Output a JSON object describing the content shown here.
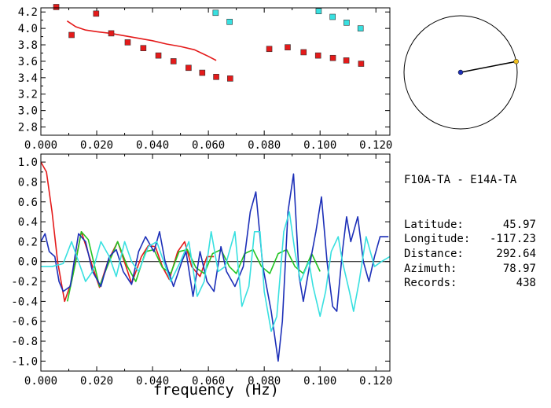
{
  "station_pair": "F10A-TA - E14A-TA",
  "info": [
    {
      "label": "Latitude:",
      "value": "45.97"
    },
    {
      "label": "Longitude:",
      "value": "-117.23"
    },
    {
      "label": "Distance:",
      "value": "292.64"
    },
    {
      "label": "Azimuth:",
      "value": "78.97"
    },
    {
      "label": "Records:",
      "value": "438"
    }
  ],
  "colors": {
    "red": "#e41a1a",
    "blue": "#1c2fb8",
    "cyan": "#38e0e0",
    "green": "#22c422",
    "axis": "#000000"
  },
  "chart_data": [
    {
      "type": "scatter",
      "title": "",
      "xlabel": "",
      "ylabel": "",
      "xlim": [
        0.0,
        0.125
      ],
      "ylim": [
        2.7,
        4.25
      ],
      "x_ticks": [
        "0.000",
        "0.020",
        "0.040",
        "0.060",
        "0.080",
        "0.100",
        "0.120"
      ],
      "y_ticks": [
        "2.8",
        "3.0",
        "3.2",
        "3.4",
        "3.6",
        "3.8",
        "4.0",
        "4.2"
      ],
      "series": [
        {
          "color": "#e41a1a",
          "points": [
            [
              0.0055,
              4.26
            ],
            [
              0.011,
              3.92
            ],
            [
              0.0198,
              4.18
            ],
            [
              0.0252,
              3.94
            ],
            [
              0.0311,
              3.83
            ],
            [
              0.0367,
              3.76
            ],
            [
              0.0421,
              3.67
            ],
            [
              0.0475,
              3.6
            ],
            [
              0.0529,
              3.52
            ],
            [
              0.0578,
              3.46
            ],
            [
              0.0628,
              3.41
            ],
            [
              0.0678,
              3.39
            ],
            [
              0.0818,
              3.75
            ],
            [
              0.0884,
              3.77
            ],
            [
              0.0941,
              3.71
            ],
            [
              0.0993,
              3.67
            ],
            [
              0.1046,
              3.64
            ],
            [
              0.1094,
              3.61
            ],
            [
              0.1147,
              3.57
            ]
          ]
        },
        {
          "color": "#38e0e0",
          "points": [
            [
              0.0626,
              4.19
            ],
            [
              0.0676,
              4.08
            ],
            [
              0.0995,
              4.21
            ],
            [
              0.1045,
              4.14
            ],
            [
              0.1095,
              4.07
            ],
            [
              0.1145,
              4.0
            ]
          ]
        }
      ],
      "fit_line": {
        "color": "#e41a1a",
        "points": [
          [
            0.0094,
            4.09
          ],
          [
            0.0125,
            4.02
          ],
          [
            0.016,
            3.98
          ],
          [
            0.02,
            3.96
          ],
          [
            0.025,
            3.94
          ],
          [
            0.03,
            3.91
          ],
          [
            0.035,
            3.88
          ],
          [
            0.04,
            3.85
          ],
          [
            0.045,
            3.81
          ],
          [
            0.05,
            3.78
          ],
          [
            0.055,
            3.74
          ],
          [
            0.06,
            3.66
          ],
          [
            0.0628,
            3.61
          ]
        ]
      }
    },
    {
      "type": "line",
      "title": "",
      "xlabel": "frequency (Hz)",
      "ylabel": "",
      "xlim": [
        0.0,
        0.125
      ],
      "ylim": [
        -1.1,
        1.08
      ],
      "x_ticks": [
        "0.000",
        "0.020",
        "0.040",
        "0.060",
        "0.080",
        "0.100",
        "0.120"
      ],
      "y_ticks": [
        "1.0",
        "0.8",
        "0.6",
        "0.4",
        "0.2",
        "0.0",
        "-0.2",
        "-0.4",
        "-0.6",
        "-0.8",
        "-1.0"
      ],
      "series": [
        {
          "color": "#e41a1a",
          "points": [
            [
              0.0,
              1.0
            ],
            [
              0.002,
              0.9
            ],
            [
              0.004,
              0.5
            ],
            [
              0.006,
              0.0
            ],
            [
              0.0085,
              -0.4
            ],
            [
              0.011,
              -0.2
            ],
            [
              0.0145,
              0.3
            ],
            [
              0.0185,
              -0.05
            ],
            [
              0.021,
              -0.26
            ],
            [
              0.024,
              0.0
            ],
            [
              0.0275,
              0.2
            ],
            [
              0.0305,
              -0.05
            ],
            [
              0.0325,
              -0.22
            ],
            [
              0.036,
              0.05
            ],
            [
              0.0385,
              0.16
            ],
            [
              0.041,
              0.15
            ],
            [
              0.0435,
              -0.05
            ],
            [
              0.046,
              -0.18
            ],
            [
              0.049,
              0.1
            ],
            [
              0.0515,
              0.2
            ],
            [
              0.054,
              -0.05
            ],
            [
              0.057,
              -0.15
            ],
            [
              0.0595,
              0.05
            ],
            [
              0.062,
              0.05
            ]
          ]
        },
        {
          "color": "#22c422",
          "points": [
            [
              0.0095,
              -0.4
            ],
            [
              0.0125,
              0.0
            ],
            [
              0.0145,
              0.3
            ],
            [
              0.017,
              0.22
            ],
            [
              0.021,
              -0.25
            ],
            [
              0.0245,
              0.0
            ],
            [
              0.0275,
              0.2
            ],
            [
              0.031,
              -0.05
            ],
            [
              0.034,
              -0.2
            ],
            [
              0.0375,
              0.1
            ],
            [
              0.0405,
              0.12
            ],
            [
              0.0435,
              -0.06
            ],
            [
              0.0465,
              -0.12
            ],
            [
              0.0495,
              0.1
            ],
            [
              0.0525,
              0.12
            ],
            [
              0.0555,
              -0.06
            ],
            [
              0.0585,
              -0.12
            ],
            [
              0.0615,
              0.08
            ],
            [
              0.0645,
              0.12
            ],
            [
              0.0675,
              -0.05
            ],
            [
              0.07,
              -0.12
            ],
            [
              0.073,
              0.08
            ],
            [
              0.076,
              0.12
            ],
            [
              0.079,
              -0.05
            ],
            [
              0.082,
              -0.12
            ],
            [
              0.085,
              0.08
            ],
            [
              0.088,
              0.12
            ],
            [
              0.091,
              -0.05
            ],
            [
              0.094,
              -0.12
            ],
            [
              0.097,
              0.08
            ],
            [
              0.1,
              -0.1
            ]
          ]
        },
        {
          "color": "#1c2fb8",
          "points": [
            [
              0.0,
              0.2
            ],
            [
              0.0015,
              0.28
            ],
            [
              0.003,
              0.1
            ],
            [
              0.005,
              0.05
            ],
            [
              0.0065,
              -0.2
            ],
            [
              0.008,
              -0.3
            ],
            [
              0.0105,
              -0.25
            ],
            [
              0.0135,
              0.28
            ],
            [
              0.016,
              0.2
            ],
            [
              0.0185,
              -0.1
            ],
            [
              0.0215,
              -0.25
            ],
            [
              0.0245,
              0.05
            ],
            [
              0.027,
              0.12
            ],
            [
              0.0295,
              -0.1
            ],
            [
              0.0325,
              -0.23
            ],
            [
              0.035,
              0.1
            ],
            [
              0.0375,
              0.25
            ],
            [
              0.0405,
              0.1
            ],
            [
              0.0425,
              0.3
            ],
            [
              0.0445,
              0.0
            ],
            [
              0.0475,
              -0.25
            ],
            [
              0.0505,
              0.0
            ],
            [
              0.052,
              0.1
            ],
            [
              0.0545,
              -0.35
            ],
            [
              0.057,
              0.1
            ],
            [
              0.0595,
              -0.2
            ],
            [
              0.062,
              -0.3
            ],
            [
              0.0645,
              0.15
            ],
            [
              0.0665,
              -0.1
            ],
            [
              0.0695,
              -0.25
            ],
            [
              0.0725,
              -0.05
            ],
            [
              0.075,
              0.5
            ],
            [
              0.077,
              0.7
            ],
            [
              0.0795,
              -0.05
            ],
            [
              0.0805,
              -0.2
            ],
            [
              0.0825,
              -0.5
            ],
            [
              0.085,
              -1.0
            ],
            [
              0.0865,
              -0.6
            ],
            [
              0.0885,
              0.5
            ],
            [
              0.0905,
              0.88
            ],
            [
              0.0925,
              -0.15
            ],
            [
              0.094,
              -0.4
            ],
            [
              0.0965,
              0.0
            ],
            [
              0.0985,
              0.3
            ],
            [
              0.1005,
              0.65
            ],
            [
              0.1025,
              0.0
            ],
            [
              0.1045,
              -0.45
            ],
            [
              0.106,
              -0.5
            ],
            [
              0.108,
              0.1
            ],
            [
              0.1095,
              0.45
            ],
            [
              0.111,
              0.2
            ],
            [
              0.1135,
              0.45
            ],
            [
              0.1155,
              0.0
            ],
            [
              0.1175,
              -0.2
            ],
            [
              0.1195,
              0.05
            ],
            [
              0.1215,
              0.25
            ],
            [
              0.1245,
              0.25
            ]
          ]
        },
        {
          "color": "#38e0e0",
          "points": [
            [
              0.0,
              -0.05
            ],
            [
              0.004,
              -0.05
            ],
            [
              0.008,
              -0.02
            ],
            [
              0.011,
              0.2
            ],
            [
              0.0135,
              0.0
            ],
            [
              0.016,
              -0.2
            ],
            [
              0.0185,
              -0.1
            ],
            [
              0.0215,
              0.2
            ],
            [
              0.0245,
              0.05
            ],
            [
              0.027,
              -0.15
            ],
            [
              0.03,
              0.2
            ],
            [
              0.0325,
              0.0
            ],
            [
              0.035,
              -0.1
            ],
            [
              0.0385,
              0.15
            ],
            [
              0.0415,
              0.2
            ],
            [
              0.044,
              0.0
            ],
            [
              0.0465,
              -0.2
            ],
            [
              0.05,
              0.0
            ],
            [
              0.053,
              0.2
            ],
            [
              0.056,
              -0.35
            ],
            [
              0.0585,
              -0.2
            ],
            [
              0.061,
              0.3
            ],
            [
              0.0635,
              -0.1
            ],
            [
              0.066,
              -0.05
            ],
            [
              0.0695,
              0.3
            ],
            [
              0.072,
              -0.45
            ],
            [
              0.0745,
              -0.25
            ],
            [
              0.0765,
              0.3
            ],
            [
              0.0785,
              0.3
            ],
            [
              0.08,
              -0.3
            ],
            [
              0.0825,
              -0.7
            ],
            [
              0.0845,
              -0.55
            ],
            [
              0.087,
              0.3
            ],
            [
              0.089,
              0.5
            ],
            [
              0.091,
              0.1
            ],
            [
              0.093,
              -0.2
            ],
            [
              0.096,
              0.0
            ],
            [
              0.0975,
              -0.25
            ],
            [
              0.1,
              -0.55
            ],
            [
              0.102,
              -0.3
            ],
            [
              0.104,
              0.1
            ],
            [
              0.1065,
              0.25
            ],
            [
              0.108,
              0.0
            ],
            [
              0.1105,
              -0.3
            ],
            [
              0.112,
              -0.5
            ],
            [
              0.114,
              -0.2
            ],
            [
              0.1165,
              0.25
            ],
            [
              0.1195,
              -0.05
            ],
            [
              0.122,
              0.0
            ],
            [
              0.125,
              0.05
            ]
          ]
        }
      ]
    }
  ],
  "polar": {
    "azimuth_deg": 78.97
  }
}
